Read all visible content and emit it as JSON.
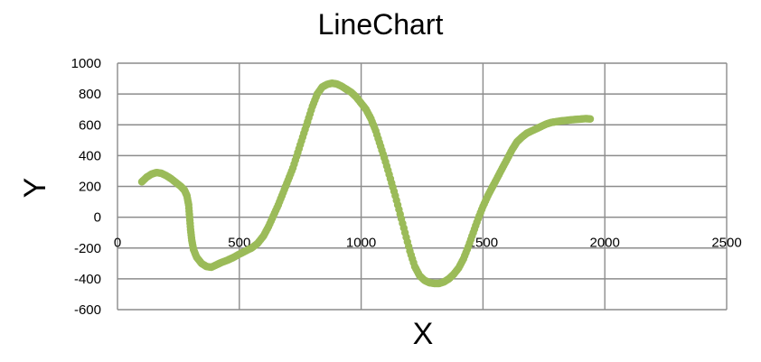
{
  "chart_data": {
    "type": "scatter",
    "title": "LineChart",
    "xlabel": "X",
    "ylabel": "Y",
    "xlim": [
      0,
      2500
    ],
    "ylim": [
      -600,
      1000
    ],
    "x_ticks": [
      0,
      500,
      1000,
      1500,
      2000,
      2500
    ],
    "y_ticks": [
      1000,
      800,
      600,
      400,
      200,
      0,
      -200,
      -400,
      -600
    ],
    "grid": true,
    "legend": "none",
    "series_color": "#9bbb59",
    "x_tick_labels": [
      "0",
      "500",
      "1000",
      "1500",
      "2000",
      "2500"
    ],
    "y_tick_labels": [
      "1000",
      "800",
      "600",
      "400",
      "200",
      "0",
      "-200",
      "-400",
      "-600"
    ],
    "series": [
      {
        "points": [
          [
            100,
            230
          ],
          [
            120,
            260
          ],
          [
            140,
            280
          ],
          [
            160,
            290
          ],
          [
            180,
            285
          ],
          [
            200,
            270
          ],
          [
            220,
            250
          ],
          [
            240,
            225
          ],
          [
            260,
            200
          ],
          [
            275,
            175
          ],
          [
            285,
            140
          ],
          [
            292,
            80
          ],
          [
            296,
            0
          ],
          [
            300,
            -80
          ],
          [
            305,
            -150
          ],
          [
            312,
            -210
          ],
          [
            325,
            -260
          ],
          [
            345,
            -300
          ],
          [
            365,
            -320
          ],
          [
            385,
            -325
          ],
          [
            405,
            -310
          ],
          [
            425,
            -295
          ],
          [
            450,
            -280
          ],
          [
            475,
            -262
          ],
          [
            500,
            -240
          ],
          [
            525,
            -220
          ],
          [
            550,
            -200
          ],
          [
            575,
            -170
          ],
          [
            600,
            -120
          ],
          [
            620,
            -60
          ],
          [
            640,
            10
          ],
          [
            660,
            80
          ],
          [
            680,
            160
          ],
          [
            700,
            240
          ],
          [
            720,
            320
          ],
          [
            740,
            420
          ],
          [
            760,
            520
          ],
          [
            780,
            620
          ],
          [
            800,
            720
          ],
          [
            820,
            800
          ],
          [
            840,
            845
          ],
          [
            860,
            862
          ],
          [
            880,
            870
          ],
          [
            900,
            865
          ],
          [
            920,
            850
          ],
          [
            940,
            830
          ],
          [
            960,
            810
          ],
          [
            980,
            780
          ],
          [
            1000,
            740
          ],
          [
            1020,
            700
          ],
          [
            1040,
            640
          ],
          [
            1060,
            560
          ],
          [
            1080,
            460
          ],
          [
            1100,
            360
          ],
          [
            1120,
            250
          ],
          [
            1140,
            140
          ],
          [
            1160,
            20
          ],
          [
            1180,
            -100
          ],
          [
            1200,
            -220
          ],
          [
            1220,
            -320
          ],
          [
            1240,
            -380
          ],
          [
            1260,
            -410
          ],
          [
            1280,
            -425
          ],
          [
            1300,
            -430
          ],
          [
            1320,
            -430
          ],
          [
            1340,
            -420
          ],
          [
            1360,
            -400
          ],
          [
            1380,
            -370
          ],
          [
            1400,
            -330
          ],
          [
            1420,
            -270
          ],
          [
            1440,
            -190
          ],
          [
            1460,
            -100
          ],
          [
            1480,
            -10
          ],
          [
            1500,
            70
          ],
          [
            1520,
            140
          ],
          [
            1540,
            200
          ],
          [
            1560,
            260
          ],
          [
            1580,
            320
          ],
          [
            1600,
            380
          ],
          [
            1620,
            440
          ],
          [
            1640,
            490
          ],
          [
            1660,
            520
          ],
          [
            1680,
            545
          ],
          [
            1700,
            560
          ],
          [
            1720,
            575
          ],
          [
            1740,
            590
          ],
          [
            1760,
            605
          ],
          [
            1780,
            615
          ],
          [
            1800,
            620
          ],
          [
            1820,
            625
          ],
          [
            1840,
            628
          ],
          [
            1860,
            632
          ],
          [
            1880,
            635
          ],
          [
            1900,
            637
          ],
          [
            1920,
            640
          ],
          [
            1940,
            638
          ]
        ]
      }
    ]
  }
}
